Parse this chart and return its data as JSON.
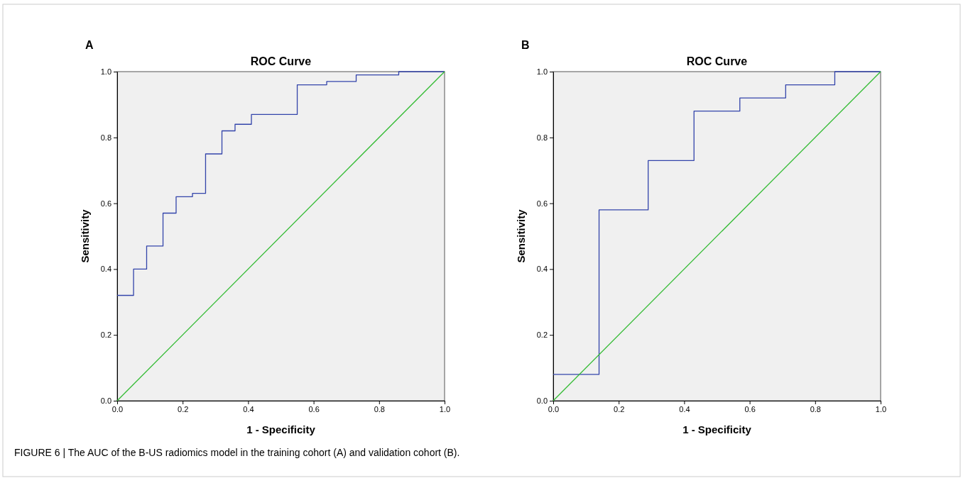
{
  "chart_data": [
    {
      "type": "step",
      "title": "ROC Curve",
      "xlabel": "1 - Specificity",
      "ylabel": "Sensitivity",
      "annotations": [
        "A",
        "FIGURE 6 | The AUC of the B-US radiomics model in the training cohort (A) and validation cohort (B)."
      ],
      "series": [
        {
          "color": "#3344aa",
          "x": [
            0,
            0.05,
            0.09,
            0.14,
            0.18,
            0.23,
            0.27,
            0.32,
            0.36,
            0.41,
            0.55,
            0.64,
            0.73,
            0.86,
            1.0
          ],
          "values": [
            0.32,
            0.4,
            0.47,
            0.57,
            0.62,
            0.63,
            0.75,
            0.82,
            0.84,
            0.87,
            0.96,
            0.97,
            0.99,
            1.0,
            1.0
          ]
        },
        {
          "type": "line",
          "color": "#33bb33",
          "x": [
            0,
            1
          ],
          "values": [
            0,
            1
          ]
        }
      ],
      "xlim": [
        0,
        1
      ],
      "ylim": [
        0,
        1
      ],
      "xticks": [
        {
          "value": 0,
          "label": "0.0"
        },
        {
          "value": 0.2,
          "label": "0.2"
        },
        {
          "value": 0.4,
          "label": "0.4"
        },
        {
          "value": 0.6,
          "label": "0.6"
        },
        {
          "value": 0.8,
          "label": "0.8"
        },
        {
          "value": 1,
          "label": "1.0"
        }
      ],
      "yticks": [
        {
          "value": 0,
          "label": "0.0"
        },
        {
          "value": 0.2,
          "label": "0.2"
        },
        {
          "value": 0.4,
          "label": "0.4"
        },
        {
          "value": 0.6,
          "label": "0.6"
        },
        {
          "value": 0.8,
          "label": "0.8"
        },
        {
          "value": 1,
          "label": "1.0"
        }
      ],
      "grid": false
    },
    {
      "type": "step",
      "title": "ROC Curve",
      "xlabel": "1 - Specificity",
      "ylabel": "Sensitivity",
      "annotations": [
        "B"
      ],
      "series": [
        {
          "color": "#3344aa",
          "x": [
            0,
            0.14,
            0.29,
            0.43,
            0.57,
            0.71,
            0.86,
            1.0
          ],
          "values": [
            0.08,
            0.58,
            0.73,
            0.88,
            0.92,
            0.96,
            1.0,
            1.0
          ]
        },
        {
          "type": "line",
          "color": "#33bb33",
          "x": [
            0,
            1
          ],
          "values": [
            0,
            1
          ]
        }
      ],
      "xlim": [
        0,
        1
      ],
      "ylim": [
        0,
        1
      ],
      "xticks": [
        {
          "value": 0,
          "label": "0.0"
        },
        {
          "value": 0.2,
          "label": "0.2"
        },
        {
          "value": 0.4,
          "label": "0.4"
        },
        {
          "value": 0.6,
          "label": "0.6"
        },
        {
          "value": 0.8,
          "label": "0.8"
        },
        {
          "value": 1,
          "label": "1.0"
        }
      ],
      "yticks": [
        {
          "value": 0,
          "label": "0.0"
        },
        {
          "value": 0.2,
          "label": "0.2"
        },
        {
          "value": 0.4,
          "label": "0.4"
        },
        {
          "value": 0.6,
          "label": "0.6"
        },
        {
          "value": 0.8,
          "label": "0.8"
        },
        {
          "value": 1,
          "label": "1.0"
        }
      ],
      "grid": false
    }
  ]
}
